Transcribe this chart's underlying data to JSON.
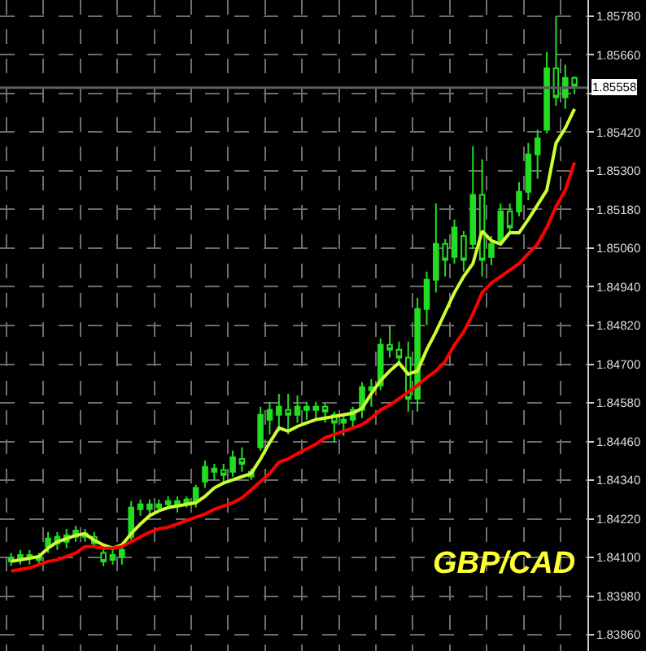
{
  "chart_data": {
    "type": "candlestick",
    "categories": [
      null,
      null,
      null,
      null,
      null,
      null,
      null,
      null,
      null,
      null,
      null,
      null,
      null,
      null,
      null,
      null,
      null,
      null,
      null,
      null,
      null,
      null,
      null,
      null,
      null,
      null,
      null,
      null,
      null,
      null,
      null,
      null,
      null,
      null,
      null,
      null,
      null,
      null,
      null,
      null,
      null,
      null,
      null,
      null,
      null,
      null,
      null,
      null,
      null,
      null,
      null,
      null,
      null,
      null,
      null,
      null,
      null,
      null,
      null,
      null,
      null,
      null
    ],
    "series": [
      {
        "color": "#22dd22",
        "ohlc": [
          [
            1.84088,
            1.84114,
            1.84073,
            1.84098
          ],
          [
            1.84093,
            1.84124,
            1.84078,
            1.84108
          ],
          [
            1.84098,
            1.84124,
            1.84078,
            1.84108
          ],
          [
            1.84093,
            1.84114,
            1.84078,
            1.84103
          ],
          [
            1.84134,
            1.84179,
            1.84114,
            1.84159
          ],
          [
            1.84144,
            1.84179,
            1.84124,
            1.84164
          ],
          [
            1.84149,
            1.84189,
            1.84129,
            1.84169
          ],
          [
            1.84164,
            1.84199,
            1.84149,
            1.84184
          ],
          [
            1.84164,
            1.84189,
            1.84149,
            1.84174
          ],
          [
            1.84164,
            1.84179,
            1.84129,
            1.84144
          ],
          [
            1.84114,
            1.84129,
            1.84073,
            1.84088
          ],
          [
            1.84093,
            1.84129,
            1.84078,
            1.84108
          ],
          [
            1.84103,
            1.84139,
            1.84078,
            1.84124
          ],
          [
            1.84164,
            1.84275,
            1.84154,
            1.84255
          ],
          [
            1.8425,
            1.8428,
            1.8423,
            1.84265
          ],
          [
            1.8425,
            1.8428,
            1.8423,
            1.84265
          ],
          [
            1.84255,
            1.8428,
            1.8424,
            1.84265
          ],
          [
            1.84265,
            1.8429,
            1.8425,
            1.84275
          ],
          [
            1.84265,
            1.8429,
            1.8424,
            1.84275
          ],
          [
            1.8427,
            1.8429,
            1.84255,
            1.8428
          ],
          [
            1.84275,
            1.84326,
            1.84255,
            1.84316
          ],
          [
            1.84336,
            1.84401,
            1.84316,
            1.84381
          ],
          [
            1.84366,
            1.84391,
            1.84341,
            1.84376
          ],
          [
            1.84371,
            1.84391,
            1.84331,
            1.84356
          ],
          [
            1.84366,
            1.84432,
            1.84351,
            1.84411
          ],
          [
            1.84406,
            1.84442,
            1.84366,
            1.84391
          ],
          [
            1.84366,
            1.84376,
            1.84341,
            1.84351
          ],
          [
            1.84442,
            1.84568,
            1.84432,
            1.84543
          ],
          [
            1.84528,
            1.84583,
            1.84482,
            1.84558
          ],
          [
            1.84543,
            1.84608,
            1.84492,
            1.84568
          ],
          [
            1.84558,
            1.84608,
            1.84482,
            1.84543
          ],
          [
            1.84543,
            1.84603,
            1.84518,
            1.84568
          ],
          [
            1.84568,
            1.84583,
            1.84528,
            1.84558
          ],
          [
            1.84558,
            1.84583,
            1.84528,
            1.84568
          ],
          [
            1.84568,
            1.84578,
            1.84518,
            1.84553
          ],
          [
            1.84543,
            1.84553,
            1.84457,
            1.84518
          ],
          [
            1.84518,
            1.84543,
            1.84477,
            1.84528
          ],
          [
            1.84528,
            1.84568,
            1.84502,
            1.84558
          ],
          [
            1.84558,
            1.84644,
            1.84533,
            1.84629
          ],
          [
            1.84629,
            1.84654,
            1.84568,
            1.84619
          ],
          [
            1.84634,
            1.8478,
            1.84619,
            1.8476
          ],
          [
            1.8476,
            1.84821,
            1.8472,
            1.84745
          ],
          [
            1.84745,
            1.8477,
            1.84704,
            1.8472
          ],
          [
            1.8472,
            1.8477,
            1.84553,
            1.84593
          ],
          [
            1.84593,
            1.84906,
            1.84553,
            1.84871
          ],
          [
            1.84871,
            1.84987,
            1.84821,
            1.84962
          ],
          [
            1.84962,
            1.85199,
            1.84922,
            1.85073
          ],
          [
            1.85073,
            1.85088,
            1.84972,
            1.85023
          ],
          [
            1.85033,
            1.85149,
            1.85012,
            1.85124
          ],
          [
            1.85098,
            1.85113,
            1.84987,
            1.85023
          ],
          [
            1.85073,
            1.85376,
            1.85058,
            1.85225
          ],
          [
            1.85225,
            1.85336,
            1.84972,
            1.85023
          ],
          [
            1.85033,
            1.85098,
            1.85007,
            1.85073
          ],
          [
            1.85083,
            1.85199,
            1.85073,
            1.85174
          ],
          [
            1.85174,
            1.85199,
            1.85108,
            1.85124
          ],
          [
            1.85174,
            1.85265,
            1.85159,
            1.85235
          ],
          [
            1.85235,
            1.85386,
            1.85209,
            1.85351
          ],
          [
            1.85351,
            1.85427,
            1.85275,
            1.85401
          ],
          [
            1.85427,
            1.85669,
            1.85416,
            1.85618
          ],
          [
            1.85618,
            1.8578,
            1.85502,
            1.85528
          ],
          [
            1.85528,
            1.85629,
            1.85492,
            1.85588
          ],
          [
            1.85588,
            1.85593,
            1.85538,
            1.85563
          ]
        ]
      },
      {
        "type": "line",
        "color": "#ccff33",
        "values": [
          1.84088,
          1.84093,
          1.84098,
          1.84103,
          1.84129,
          1.84149,
          1.84159,
          1.84169,
          1.84174,
          1.84154,
          1.84139,
          1.84129,
          1.84139,
          1.84174,
          1.84204,
          1.8423,
          1.84245,
          1.84255,
          1.8426,
          1.84265,
          1.8427,
          1.8429,
          1.84316,
          1.84331,
          1.84341,
          1.84351,
          1.84361,
          1.84406,
          1.84457,
          1.84502,
          1.84492,
          1.84507,
          1.84518,
          1.84528,
          1.84533,
          1.84538,
          1.84543,
          1.84548,
          1.84563,
          1.84608,
          1.84649,
          1.84679,
          1.84704,
          1.84669,
          1.84679,
          1.84745,
          1.848,
          1.84861,
          1.84922,
          1.84972,
          1.85012,
          1.85113,
          1.85083,
          1.85073,
          1.85108,
          1.85108,
          1.85149,
          1.85194,
          1.8524,
          1.85386,
          1.85432,
          1.85492
        ]
      },
      {
        "type": "line",
        "color": "#ff0000",
        "values": [
          1.84058,
          1.84063,
          1.84068,
          1.84078,
          1.84088,
          1.84093,
          1.84103,
          1.84114,
          1.84134,
          1.84134,
          1.84129,
          1.84129,
          1.84134,
          1.84149,
          1.84164,
          1.84179,
          1.84189,
          1.84194,
          1.84204,
          1.84215,
          1.84225,
          1.84235,
          1.8425,
          1.8426,
          1.8427,
          1.84285,
          1.8431,
          1.84336,
          1.84361,
          1.84396,
          1.84406,
          1.84422,
          1.84437,
          1.84452,
          1.84472,
          1.84482,
          1.84492,
          1.84502,
          1.84512,
          1.84533,
          1.84558,
          1.84573,
          1.84593,
          1.84613,
          1.84634,
          1.84659,
          1.84679,
          1.84709,
          1.8476,
          1.848,
          1.84856,
          1.84922,
          1.84952,
          1.84972,
          1.84992,
          1.85012,
          1.85043,
          1.85073,
          1.85124,
          1.85189,
          1.8524,
          1.85326
        ]
      }
    ],
    "ylim": [
      1.8381,
      1.8583
    ],
    "yticks": [
      {
        "value": 1.8386,
        "label": "1.83860"
      },
      {
        "value": 1.8398,
        "label": "1.83980"
      },
      {
        "value": 1.841,
        "label": "1.84100"
      },
      {
        "value": 1.8422,
        "label": "1.84220"
      },
      {
        "value": 1.8434,
        "label": "1.84340"
      },
      {
        "value": 1.8446,
        "label": "1.84460"
      },
      {
        "value": 1.8458,
        "label": "1.84580"
      },
      {
        "value": 1.847,
        "label": "1.84700"
      },
      {
        "value": 1.8482,
        "label": "1.84820"
      },
      {
        "value": 1.8494,
        "label": "1.84940"
      },
      {
        "value": 1.8506,
        "label": "1.85060"
      },
      {
        "value": 1.8518,
        "label": "1.85180"
      },
      {
        "value": 1.853,
        "label": "1.85300"
      },
      {
        "value": 1.8542,
        "label": "1.85420"
      },
      {
        "value": 1.8554,
        "label": null
      },
      {
        "value": 1.8566,
        "label": "1.85660"
      },
      {
        "value": 1.8578,
        "label": "1.85780"
      }
    ],
    "ref_lines": [
      {
        "axis": "y",
        "value": 1.85558,
        "label": "1.85558",
        "color": "#5a5a64"
      }
    ],
    "annotations": [
      "GBP/CAD"
    ],
    "grid": true,
    "tick_labels": "y"
  }
}
